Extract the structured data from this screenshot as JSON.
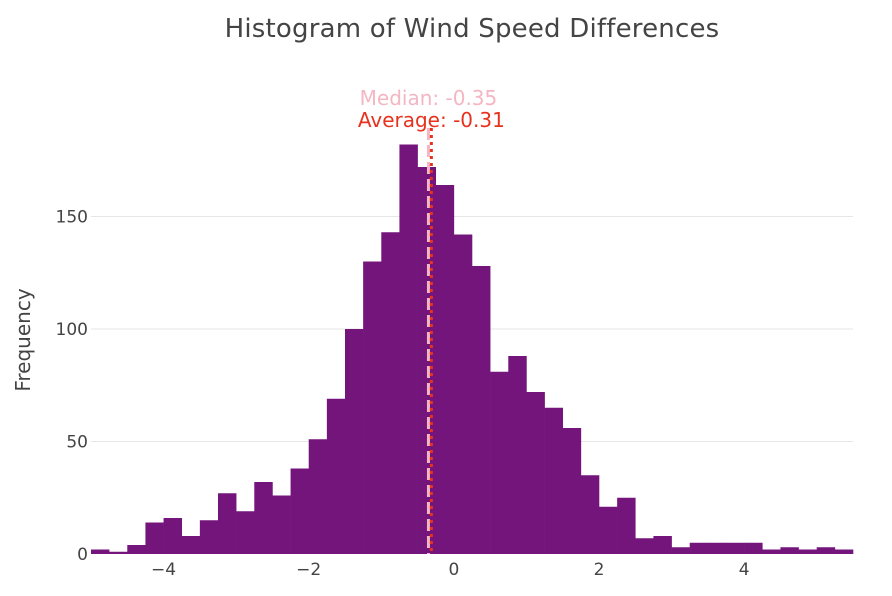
{
  "chart_data": {
    "type": "bar",
    "title": "Histogram of Wind Speed Differences",
    "xlabel": "",
    "ylabel": "Frequency",
    "xlim": [
      -5,
      5.5
    ],
    "ylim": [
      0,
      180
    ],
    "grid": true,
    "bin_width": 0.25,
    "bin_start": -5.0,
    "values": [
      2,
      1,
      4,
      14,
      16,
      8,
      15,
      27,
      19,
      32,
      26,
      38,
      51,
      69,
      100,
      130,
      143,
      182,
      172,
      164,
      142,
      128,
      81,
      88,
      72,
      65,
      56,
      35,
      21,
      25,
      7,
      8,
      3,
      5,
      5,
      5,
      5,
      2,
      3,
      2,
      3,
      2
    ],
    "x_ticks": [
      -4,
      -2,
      0,
      2,
      4
    ],
    "x_tick_labels": [
      "−4",
      "−2",
      "0",
      "2",
      "4"
    ],
    "y_ticks": [
      0,
      50,
      100,
      150
    ],
    "y_tick_labels": [
      "0",
      "50",
      "100",
      "150"
    ],
    "median": {
      "value": -0.35,
      "label": "Median: -0.35",
      "color": "#f4b6c2"
    },
    "average": {
      "value": -0.31,
      "label": "Average: -0.31",
      "color": "#e8321e"
    },
    "bar_color": "#74157c",
    "grid_color": "#e6e6e6"
  }
}
